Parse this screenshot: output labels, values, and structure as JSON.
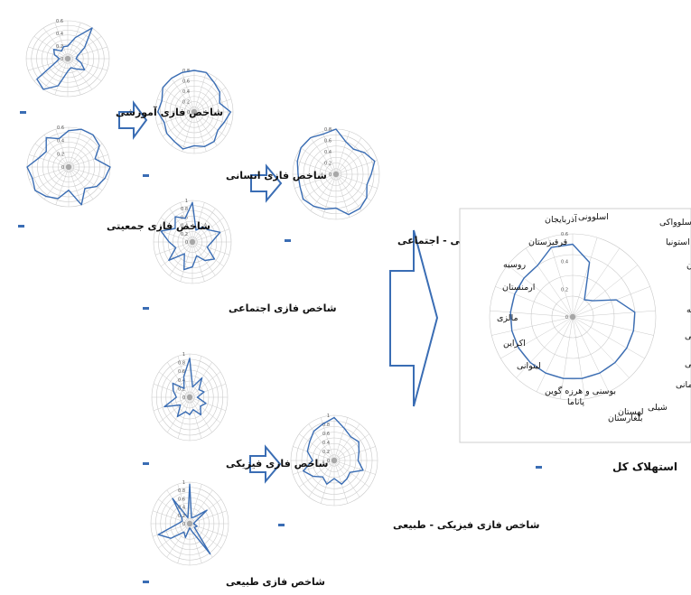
{
  "small_charts": [
    {
      "id": "amoozeshi",
      "caption": "شاخص فازی آموزشی",
      "ticks": [
        "0.6",
        "0.4",
        "0.2",
        "0"
      ],
      "values": [
        0.2,
        0.35,
        0.85,
        0.3,
        0.15,
        0.12,
        0.2,
        0.3,
        0.2,
        0.15,
        0.2,
        0.45,
        0.95,
        0.55,
        0.18,
        0.12,
        0.2,
        0.25,
        0.15,
        0.2
      ]
    },
    {
      "id": "jamiyati",
      "caption": "شاخص فازی جمعیتی",
      "ticks": [
        "0.6",
        "0.4",
        "0.2",
        "0"
      ],
      "values": [
        0.55,
        0.8,
        0.6,
        0.55,
        0.4,
        0.75,
        0.55,
        0.5,
        0.4,
        0.6,
        0.35,
        0.5,
        0.55,
        0.65,
        0.55,
        0.6,
        0.45,
        0.4,
        0.55,
        0.45
      ]
    },
    {
      "id": "ensani",
      "caption": "شاخص فازی انسانی",
      "ticks": [
        "0.8",
        "0.6",
        "0.4",
        "0.2",
        "0"
      ],
      "values": [
        0.8,
        0.85,
        0.7,
        0.65,
        0.55,
        0.75,
        0.65,
        0.6,
        0.7,
        0.7,
        0.65,
        0.75,
        0.7,
        0.7,
        0.65,
        0.75,
        0.7,
        0.8,
        0.8,
        0.85
      ]
    },
    {
      "id": "ejtemaei",
      "caption": "شاخص فازی اجتماعی",
      "ticks": [
        "1",
        "0.8",
        "0.6",
        "0.4",
        "0.2",
        "0"
      ],
      "values": [
        0.95,
        0.3,
        0.45,
        0.5,
        0.75,
        0.5,
        0.4,
        0.7,
        0.55,
        0.35,
        0.6,
        0.7,
        0.35,
        0.75,
        0.45,
        0.6,
        0.85,
        0.55,
        0.75,
        0.6
      ]
    },
    {
      "id": "ensani_ejtemaei",
      "caption": "شاخص فازی انسانی - اجتماعی",
      "ticks": [
        "0.8",
        "0.6",
        "0.4",
        "0.2",
        "0"
      ],
      "values": [
        0.85,
        0.6,
        0.55,
        0.65,
        0.75,
        0.65,
        0.6,
        0.7,
        0.75,
        0.75,
        0.6,
        0.65,
        0.7,
        0.75,
        0.7,
        0.7,
        0.75,
        0.8,
        0.8,
        0.75
      ]
    },
    {
      "id": "fiziki",
      "caption": "شاخص فازی فیزیکی",
      "ticks": [
        "1",
        "0.8",
        "0.6",
        "0.4",
        "0.2",
        "0"
      ],
      "values": [
        0.9,
        0.25,
        0.55,
        0.3,
        0.4,
        0.2,
        0.45,
        0.35,
        0.5,
        0.3,
        0.4,
        0.35,
        0.55,
        0.3,
        0.7,
        0.35,
        0.45,
        0.55,
        0.25,
        0.5
      ]
    },
    {
      "id": "fiziki_tabiei",
      "caption": "شاخص فازی فیزیکی - طبیعی",
      "ticks": [
        "1",
        "0.8",
        "0.6",
        "0.4",
        "0.2",
        "0"
      ],
      "values": [
        0.95,
        0.75,
        0.65,
        0.7,
        0.6,
        0.55,
        0.7,
        0.45,
        0.5,
        0.55,
        0.4,
        0.55,
        0.45,
        0.6,
        0.75,
        0.5,
        0.65,
        0.7,
        0.8,
        0.85
      ]
    },
    {
      "id": "tabiei",
      "caption": "شاخص فازی طبیعی",
      "ticks": [
        "1",
        "0.8",
        "0.6",
        "0.4",
        "0.2",
        "0"
      ],
      "values": [
        0.95,
        0.15,
        0.2,
        0.55,
        0.15,
        0.1,
        0.2,
        0.15,
        0.9,
        0.2,
        0.1,
        0.35,
        0.25,
        0.6,
        0.85,
        0.3,
        0.2,
        0.25,
        0.75,
        0.15
      ]
    }
  ],
  "chart_data": {
    "type": "radar",
    "title": "استهلاک کل",
    "ticks": [
      "0.6",
      "0.4",
      "0.2",
      "0"
    ],
    "categories": [
      "اسلوونی",
      "اسلوواکی",
      "استونیا",
      "مجارستان",
      "جمهوری چک",
      "ترکیه",
      "لتونی",
      "کرواسی",
      "رومانی",
      "شیلی",
      "بلغارستان",
      "لهستان",
      "پاناما",
      "بوسنی و هرزه گوین",
      "لیتوانی",
      "اکراین",
      "مالزی",
      "ارمنستان",
      "روسیه",
      "قرقیزستان",
      "آذربایجان"
    ],
    "values": [
      0.7,
      0.55,
      0.2,
      0.25,
      0.45,
      0.6,
      0.6,
      0.6,
      0.6,
      0.6,
      0.6,
      0.6,
      0.6,
      0.6,
      0.6,
      0.6,
      0.6,
      0.6,
      0.6,
      0.6,
      0.7
    ],
    "ylim": [
      0,
      0.8
    ]
  },
  "colors": {
    "series": "#3a6db4",
    "grid": "#c9c9c9",
    "arrow": "#3a6db4",
    "marker": "#3a6db4"
  }
}
